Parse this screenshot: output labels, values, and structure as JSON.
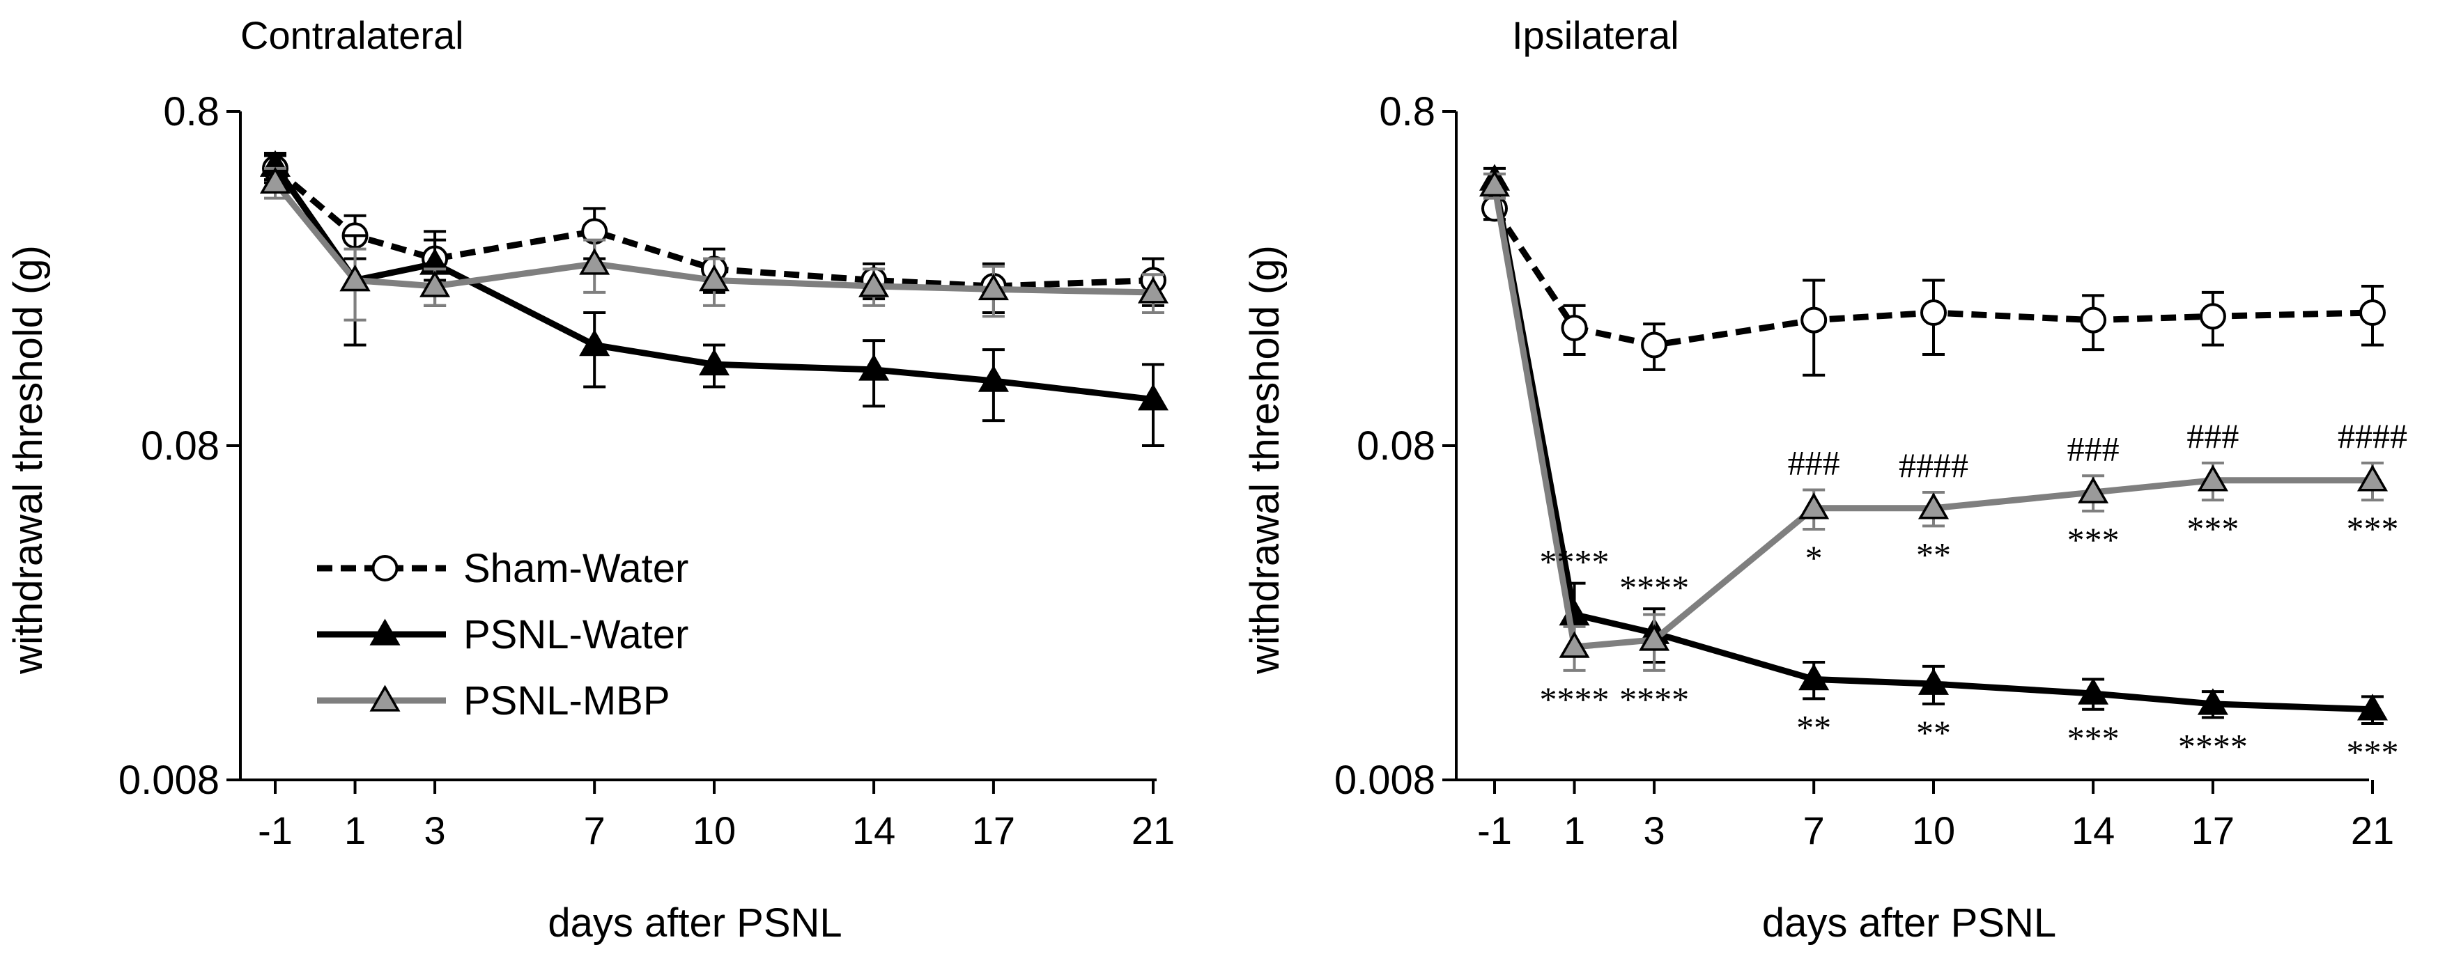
{
  "figure": {
    "legend": {
      "entries": [
        "Sham-Water",
        "PSNL-Water",
        "PSNL-MBP"
      ],
      "placement": "lower-left of left panel"
    }
  },
  "series_styles": {
    "Sham-Water": {
      "line_color": "#000000",
      "dash": true,
      "marker": "circle",
      "marker_fill": "#ffffff"
    },
    "PSNL-Water": {
      "line_color": "#000000",
      "dash": false,
      "marker": "triangle",
      "marker_fill": "#000000"
    },
    "PSNL-MBP": {
      "line_color": "#7f7f7f",
      "dash": false,
      "marker": "triangle",
      "marker_fill": "#9a9a9a"
    }
  },
  "chart_data": [
    {
      "type": "line",
      "title": "Contralateral",
      "xlabel": "days after PSNL",
      "ylabel": "withdrawal threshold (g)",
      "yscale": "log",
      "ylim": [
        0.008,
        0.8
      ],
      "yticks": [
        "0.8",
        "0.08",
        "0.008"
      ],
      "ytick_values": [
        0.8,
        0.08,
        0.008
      ],
      "categories": [
        "-1",
        "1",
        "3",
        "7",
        "10",
        "14",
        "17",
        "21"
      ],
      "x": [
        -1,
        1,
        3,
        7,
        10,
        14,
        17,
        21
      ],
      "series": [
        {
          "name": "Sham-Water",
          "values": [
            0.54,
            0.34,
            0.29,
            0.35,
            0.27,
            0.25,
            0.24,
            0.25
          ],
          "errors": [
            0.05,
            0.05,
            0.04,
            0.06,
            0.04,
            0.03,
            0.04,
            0.04
          ]
        },
        {
          "name": "PSNL-Water",
          "values": [
            0.55,
            0.25,
            0.28,
            0.16,
            0.14,
            0.135,
            0.125,
            0.11
          ],
          "errors": [
            0.05,
            0.09,
            0.07,
            0.04,
            0.02,
            0.03,
            0.03,
            0.03
          ]
        },
        {
          "name": "PSNL-MBP",
          "values": [
            0.49,
            0.25,
            0.24,
            0.28,
            0.25,
            0.24,
            0.235,
            0.23
          ],
          "errors": [
            0.05,
            0.06,
            0.03,
            0.05,
            0.04,
            0.03,
            0.04,
            0.03
          ]
        }
      ],
      "annotations": []
    },
    {
      "type": "line",
      "title": "Ipsilateral",
      "xlabel": "days after PSNL",
      "ylabel": "withdrawal threshold (g)",
      "yscale": "log",
      "ylim": [
        0.008,
        0.8
      ],
      "yticks": [
        "0.8",
        "0.08",
        "0.008"
      ],
      "ytick_values": [
        0.8,
        0.08,
        0.008
      ],
      "categories": [
        "-1",
        "1",
        "3",
        "7",
        "10",
        "14",
        "17",
        "21"
      ],
      "x": [
        -1,
        1,
        3,
        7,
        10,
        14,
        17,
        21
      ],
      "series": [
        {
          "name": "Sham-Water",
          "values": [
            0.41,
            0.18,
            0.16,
            0.19,
            0.2,
            0.19,
            0.195,
            0.2
          ],
          "errors": [
            0.03,
            0.03,
            0.025,
            0.06,
            0.05,
            0.035,
            0.035,
            0.04
          ]
        },
        {
          "name": "PSNL-Water",
          "values": [
            0.5,
            0.025,
            0.022,
            0.016,
            0.0155,
            0.0145,
            0.0135,
            0.013
          ],
          "errors": [
            0.04,
            0.006,
            0.004,
            0.002,
            0.002,
            0.0015,
            0.0012,
            0.0012
          ]
        },
        {
          "name": "PSNL-MBP",
          "values": [
            0.48,
            0.02,
            0.021,
            0.052,
            0.052,
            0.058,
            0.063,
            0.063
          ],
          "errors": [
            0.04,
            0.003,
            0.004,
            0.007,
            0.006,
            0.007,
            0.008,
            0.008
          ]
        }
      ],
      "annotations": [
        {
          "x": 1,
          "text": "****",
          "position": "above PSNL-Water"
        },
        {
          "x": 1,
          "text": "****",
          "position": "below PSNL-MBP"
        },
        {
          "x": 3,
          "text": "****",
          "position": "above PSNL-Water"
        },
        {
          "x": 3,
          "text": "****",
          "position": "below PSNL-MBP"
        },
        {
          "x": 7,
          "text": "###",
          "position": "above PSNL-MBP"
        },
        {
          "x": 7,
          "text": "*",
          "position": "below PSNL-MBP"
        },
        {
          "x": 7,
          "text": "**",
          "position": "below PSNL-Water"
        },
        {
          "x": 10,
          "text": "####",
          "position": "above PSNL-MBP"
        },
        {
          "x": 10,
          "text": "**",
          "position": "below PSNL-MBP"
        },
        {
          "x": 10,
          "text": "**",
          "position": "below PSNL-Water"
        },
        {
          "x": 14,
          "text": "###",
          "position": "above PSNL-MBP"
        },
        {
          "x": 14,
          "text": "***",
          "position": "below PSNL-MBP"
        },
        {
          "x": 14,
          "text": "***",
          "position": "below PSNL-Water"
        },
        {
          "x": 17,
          "text": "###",
          "position": "above PSNL-MBP"
        },
        {
          "x": 17,
          "text": "***",
          "position": "below PSNL-MBP"
        },
        {
          "x": 17,
          "text": "****",
          "position": "below PSNL-Water"
        },
        {
          "x": 21,
          "text": "####",
          "position": "above PSNL-MBP"
        },
        {
          "x": 21,
          "text": "***",
          "position": "below PSNL-MBP"
        },
        {
          "x": 21,
          "text": "***",
          "position": "below PSNL-Water"
        }
      ]
    }
  ]
}
